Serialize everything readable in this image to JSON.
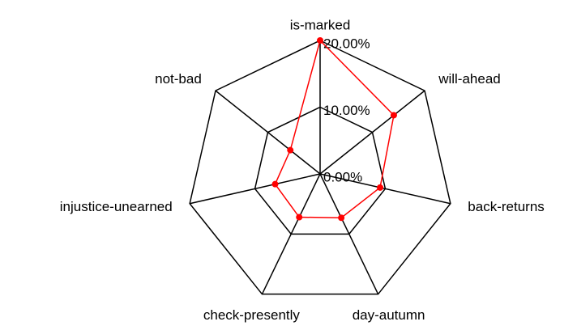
{
  "chart_data": {
    "type": "radar",
    "categories": [
      "is-marked",
      "will-ahead",
      "back-returns",
      "day-autumn",
      "check-presently",
      "injustice-unearned",
      "not-bad"
    ],
    "series": [
      {
        "color": "#ff0000",
        "values": [
          20,
          14.1,
          9.2,
          7.3,
          7.2,
          6.9,
          5.7
        ]
      }
    ],
    "ylim": [
      0,
      20
    ],
    "yticks": [
      {
        "value": 0,
        "label": "0.00%"
      },
      {
        "value": 10,
        "label": "10.00%"
      },
      {
        "value": 20,
        "label": "20.00%"
      }
    ],
    "grid": true
  }
}
